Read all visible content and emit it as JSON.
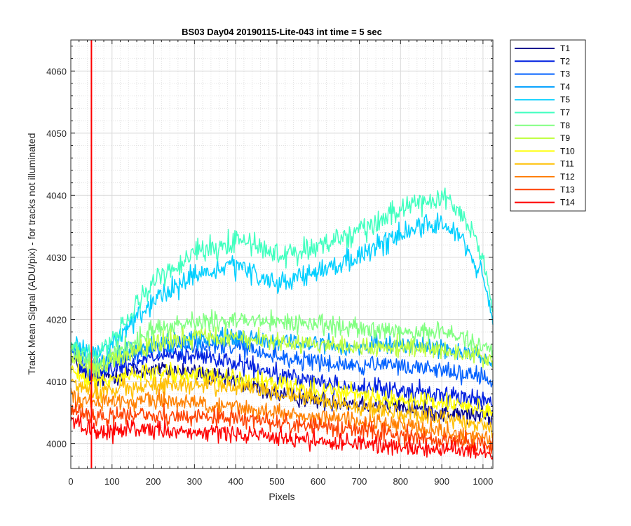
{
  "chart_data": {
    "type": "line",
    "title": "BS03 Day04 20190115-Lite-043 int time = 5 sec",
    "xlabel": "Pixels",
    "ylabel": "Track Mean Signal (ADU/pix) - for tracks not illuminated",
    "xlim": [
      0,
      1024
    ],
    "ylim": [
      3996,
      4065
    ],
    "xticks": [
      0,
      100,
      200,
      300,
      400,
      500,
      600,
      700,
      800,
      900,
      1000
    ],
    "yticks": [
      4000,
      4010,
      4020,
      4030,
      4040,
      4050,
      4060
    ],
    "grid": true,
    "legend_position": "outside-top-right",
    "vertical_marker": {
      "x": 50,
      "ymin": 3996,
      "ymax": 4065,
      "color": "#ff0000"
    },
    "series": [
      {
        "name": "T1",
        "color": "#00008f",
        "noise": 1.2,
        "points": [
          [
            0,
            4014
          ],
          [
            50,
            4010
          ],
          [
            100,
            4011
          ],
          [
            200,
            4012
          ],
          [
            300,
            4011.5
          ],
          [
            400,
            4010
          ],
          [
            500,
            4008
          ],
          [
            600,
            4007
          ],
          [
            700,
            4006.5
          ],
          [
            800,
            4006
          ],
          [
            900,
            4005
          ],
          [
            1000,
            4004.5
          ],
          [
            1024,
            4004
          ]
        ]
      },
      {
        "name": "T2",
        "color": "#0020e0",
        "noise": 1.2,
        "points": [
          [
            0,
            4015
          ],
          [
            50,
            4011
          ],
          [
            100,
            4012
          ],
          [
            200,
            4014
          ],
          [
            300,
            4014
          ],
          [
            400,
            4013
          ],
          [
            500,
            4011
          ],
          [
            600,
            4010
          ],
          [
            700,
            4009
          ],
          [
            800,
            4008.5
          ],
          [
            900,
            4008
          ],
          [
            1000,
            4007
          ],
          [
            1024,
            4006.5
          ]
        ]
      },
      {
        "name": "T3",
        "color": "#0060ff",
        "noise": 1.2,
        "points": [
          [
            0,
            4015
          ],
          [
            50,
            4012
          ],
          [
            100,
            4013
          ],
          [
            200,
            4015.5
          ],
          [
            300,
            4016
          ],
          [
            400,
            4015.5
          ],
          [
            500,
            4014
          ],
          [
            600,
            4013
          ],
          [
            700,
            4012.5
          ],
          [
            800,
            4012.5
          ],
          [
            900,
            4012
          ],
          [
            1000,
            4010.5
          ],
          [
            1024,
            4010
          ]
        ]
      },
      {
        "name": "T4",
        "color": "#00a0ff",
        "noise": 1.2,
        "points": [
          [
            0,
            4016
          ],
          [
            50,
            4013
          ],
          [
            100,
            4014
          ],
          [
            200,
            4016
          ],
          [
            300,
            4017
          ],
          [
            400,
            4017
          ],
          [
            500,
            4016.5
          ],
          [
            600,
            4016
          ],
          [
            700,
            4015.5
          ],
          [
            800,
            4016
          ],
          [
            900,
            4015.5
          ],
          [
            1000,
            4014
          ],
          [
            1024,
            4013
          ]
        ]
      },
      {
        "name": "T5",
        "color": "#00cfff",
        "noise": 1.4,
        "points": [
          [
            0,
            4016
          ],
          [
            50,
            4014
          ],
          [
            100,
            4016
          ],
          [
            200,
            4023
          ],
          [
            300,
            4027
          ],
          [
            400,
            4028.5
          ],
          [
            450,
            4027
          ],
          [
            500,
            4026
          ],
          [
            600,
            4027.5
          ],
          [
            700,
            4030
          ],
          [
            800,
            4034
          ],
          [
            850,
            4035
          ],
          [
            900,
            4035.5
          ],
          [
            950,
            4033
          ],
          [
            1000,
            4027
          ],
          [
            1024,
            4019
          ]
        ]
      },
      {
        "name": "T7",
        "color": "#40ffbf",
        "noise": 1.5,
        "points": [
          [
            0,
            4016
          ],
          [
            50,
            4014
          ],
          [
            100,
            4016.5
          ],
          [
            200,
            4026
          ],
          [
            300,
            4031
          ],
          [
            400,
            4032.5
          ],
          [
            450,
            4032
          ],
          [
            500,
            4030.5
          ],
          [
            600,
            4031.5
          ],
          [
            700,
            4034
          ],
          [
            800,
            4038
          ],
          [
            850,
            4039
          ],
          [
            900,
            4040
          ],
          [
            950,
            4037
          ],
          [
            1000,
            4030
          ],
          [
            1024,
            4022
          ]
        ]
      },
      {
        "name": "T8",
        "color": "#80ff80",
        "noise": 1.3,
        "points": [
          [
            0,
            4015
          ],
          [
            50,
            4013
          ],
          [
            100,
            4014
          ],
          [
            200,
            4018.5
          ],
          [
            300,
            4019.5
          ],
          [
            400,
            4020
          ],
          [
            500,
            4019.5
          ],
          [
            600,
            4019.5
          ],
          [
            700,
            4018.5
          ],
          [
            800,
            4018
          ],
          [
            900,
            4018
          ],
          [
            1000,
            4016
          ],
          [
            1024,
            4015
          ]
        ]
      },
      {
        "name": "T9",
        "color": "#bfff40",
        "noise": 1.3,
        "points": [
          [
            0,
            4014
          ],
          [
            50,
            4012
          ],
          [
            100,
            4013
          ],
          [
            200,
            4016
          ],
          [
            300,
            4017
          ],
          [
            400,
            4017
          ],
          [
            500,
            4016.5
          ],
          [
            600,
            4016
          ],
          [
            700,
            4015.5
          ],
          [
            800,
            4015.5
          ],
          [
            900,
            4015
          ],
          [
            1000,
            4014
          ],
          [
            1024,
            4013
          ]
        ]
      },
      {
        "name": "T10",
        "color": "#ffff00",
        "noise": 1.2,
        "points": [
          [
            0,
            4012
          ],
          [
            50,
            4010
          ],
          [
            100,
            4010.5
          ],
          [
            200,
            4011.5
          ],
          [
            300,
            4011
          ],
          [
            400,
            4010.5
          ],
          [
            500,
            4009.5
          ],
          [
            600,
            4008.5
          ],
          [
            700,
            4008
          ],
          [
            800,
            4007
          ],
          [
            900,
            4006.5
          ],
          [
            1000,
            4005.5
          ],
          [
            1024,
            4005
          ]
        ]
      },
      {
        "name": "T11",
        "color": "#ffbf00",
        "noise": 1.2,
        "points": [
          [
            0,
            4010
          ],
          [
            50,
            4008
          ],
          [
            100,
            4008.5
          ],
          [
            200,
            4009.5
          ],
          [
            300,
            4009.5
          ],
          [
            400,
            4009
          ],
          [
            500,
            4008
          ],
          [
            600,
            4007
          ],
          [
            700,
            4006
          ],
          [
            800,
            4005
          ],
          [
            900,
            4004
          ],
          [
            1000,
            4003
          ],
          [
            1024,
            4002.5
          ]
        ]
      },
      {
        "name": "T12",
        "color": "#ff8000",
        "noise": 1.2,
        "points": [
          [
            0,
            4008
          ],
          [
            50,
            4006.5
          ],
          [
            100,
            4007
          ],
          [
            200,
            4007
          ],
          [
            300,
            4006.5
          ],
          [
            400,
            4006
          ],
          [
            500,
            4005
          ],
          [
            600,
            4004
          ],
          [
            700,
            4003.5
          ],
          [
            800,
            4003
          ],
          [
            900,
            4002
          ],
          [
            1000,
            4001
          ],
          [
            1024,
            4000.5
          ]
        ]
      },
      {
        "name": "T13",
        "color": "#ff4000",
        "noise": 1.2,
        "points": [
          [
            0,
            4006
          ],
          [
            50,
            4004.5
          ],
          [
            100,
            4004.5
          ],
          [
            200,
            4004.5
          ],
          [
            300,
            4004.5
          ],
          [
            400,
            4004
          ],
          [
            500,
            4003.5
          ],
          [
            600,
            4003
          ],
          [
            700,
            4002
          ],
          [
            800,
            4001.5
          ],
          [
            900,
            4000.5
          ],
          [
            1000,
            4000
          ],
          [
            1024,
            3999.5
          ]
        ]
      },
      {
        "name": "T14",
        "color": "#ff0000",
        "noise": 1.2,
        "points": [
          [
            0,
            4004
          ],
          [
            50,
            4002
          ],
          [
            100,
            4002
          ],
          [
            200,
            4002
          ],
          [
            300,
            4002
          ],
          [
            400,
            4001.5
          ],
          [
            500,
            4001
          ],
          [
            600,
            4000.5
          ],
          [
            700,
            4000
          ],
          [
            800,
            3999.5
          ],
          [
            900,
            3999
          ],
          [
            1000,
            3998.5
          ],
          [
            1024,
            3998
          ]
        ]
      }
    ]
  }
}
